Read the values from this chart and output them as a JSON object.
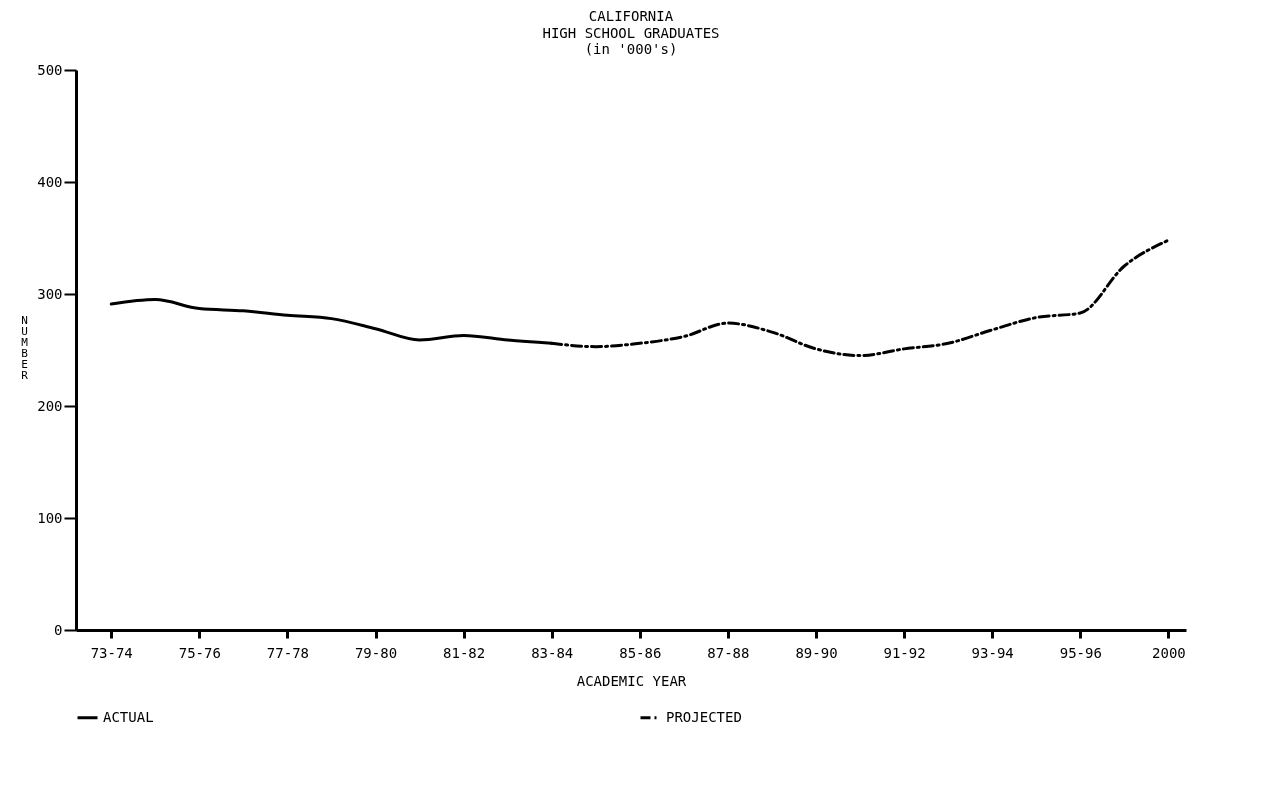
{
  "chart_data": {
    "type": "line",
    "title": "CALIFORNIA",
    "subtitle": [
      "HIGH SCHOOL GRADUATES",
      "(in '000's)"
    ],
    "xlabel": "ACADEMIC YEAR",
    "ylabel": "NUMBER",
    "categories": [
      "73-74",
      null,
      "75-76",
      null,
      "77-78",
      null,
      "79-80",
      null,
      "81-82",
      null,
      "83-84",
      null,
      "85-86",
      null,
      "87-88",
      null,
      "89-90",
      null,
      "91-92",
      null,
      "93-94",
      null,
      "95-96",
      null,
      "2000"
    ],
    "series": [
      {
        "name": "ACTUAL",
        "color": "#000000",
        "line_style": "solid",
        "values": [
          291,
          295,
          287,
          285,
          281,
          278,
          269,
          259,
          263,
          259,
          256,
          null,
          null,
          null,
          null,
          null,
          null,
          null,
          null,
          null,
          null,
          null,
          null,
          null,
          null
        ]
      },
      {
        "name": "PROJECTED",
        "color": "#000000",
        "line_style": "dashed",
        "values": [
          null,
          null,
          null,
          null,
          null,
          null,
          null,
          null,
          null,
          null,
          256,
          253,
          256,
          262,
          274,
          266,
          251,
          245,
          251,
          256,
          268,
          279,
          283,
          325,
          348
        ]
      }
    ],
    "ylim": [
      0,
      500
    ],
    "yticks": [
      0,
      100,
      200,
      300,
      400,
      500
    ],
    "grid": false,
    "legend": "bottom"
  }
}
